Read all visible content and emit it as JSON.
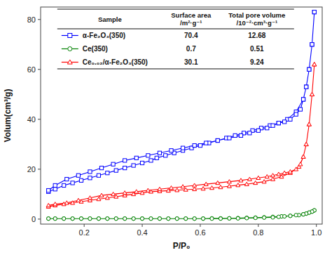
{
  "chart_data": {
    "type": "line",
    "x_label": "P/P₀",
    "y_label": "Volum(cm³/g)",
    "xlim": [
      0.05,
      1.02
    ],
    "ylim": [
      -2,
      85
    ],
    "xticks": [
      0.2,
      0.4,
      0.6,
      0.8,
      {
        "value": 1.0,
        "label": "1.0"
      }
    ],
    "yticks": [
      0,
      20,
      40,
      60,
      80
    ],
    "grid": false,
    "legend": "top",
    "table_columns": [
      [
        "Sample"
      ],
      [
        "Surface area",
        "/m²·g⁻¹"
      ],
      [
        "Total pore volume",
        "/10⁻²·cm³·g⁻¹"
      ]
    ],
    "series": [
      {
        "name": "α-Fe₂O₃(350)",
        "color": "#0000FF",
        "marker": "square",
        "surface_area": 70.4,
        "pore_volume": 12.68,
        "x": [
          0.077,
          0.1,
          0.13,
          0.16,
          0.19,
          0.22,
          0.25,
          0.28,
          0.31,
          0.34,
          0.37,
          0.4,
          0.43,
          0.45,
          0.48,
          0.51,
          0.54,
          0.57,
          0.6,
          0.63,
          0.66,
          0.69,
          0.72,
          0.75,
          0.78,
          0.81,
          0.84,
          0.87,
          0.9,
          0.93,
          0.955,
          0.965,
          0.975,
          0.985,
          0.993,
          0.993,
          0.985,
          0.975,
          0.965,
          0.955,
          0.945,
          0.93,
          0.91,
          0.89,
          0.87,
          0.85,
          0.83,
          0.8,
          0.77,
          0.74,
          0.7,
          0.66,
          0.62,
          0.58,
          0.54,
          0.5,
          0.46,
          0.42,
          0.38,
          0.34,
          0.3,
          0.26,
          0.22,
          0.18,
          0.14,
          0.1,
          0.077
        ],
        "values": [
          11.0,
          12.0,
          13.5,
          14.5,
          15.5,
          16.5,
          17.5,
          18.5,
          19.5,
          20.5,
          21.5,
          22.5,
          23.5,
          24.5,
          25.5,
          26.5,
          27.5,
          28.5,
          29.5,
          30.5,
          31.5,
          32.5,
          33.5,
          34.5,
          35.5,
          36.5,
          37.5,
          38.5,
          40.0,
          43.0,
          48.0,
          53.0,
          60.0,
          70.0,
          83.0,
          83.0,
          70.0,
          60.0,
          53.0,
          48.0,
          44.0,
          42.0,
          40.0,
          39.0,
          38.5,
          37.5,
          36.5,
          35.5,
          34.5,
          33.5,
          32.5,
          31.5,
          30.5,
          29.5,
          28.5,
          27.5,
          26.5,
          25.5,
          24.5,
          23.5,
          22.0,
          20.5,
          19.0,
          17.5,
          16.0,
          13.5,
          11.5
        ]
      },
      {
        "name": "Ce(350)",
        "color": "#008000",
        "marker": "circle",
        "surface_area": 0.7,
        "pore_volume": 0.51,
        "x": [
          0.077,
          0.1,
          0.13,
          0.16,
          0.19,
          0.22,
          0.25,
          0.28,
          0.31,
          0.34,
          0.37,
          0.4,
          0.43,
          0.46,
          0.49,
          0.52,
          0.55,
          0.58,
          0.61,
          0.64,
          0.67,
          0.7,
          0.73,
          0.76,
          0.79,
          0.82,
          0.85,
          0.88,
          0.91,
          0.94,
          0.955,
          0.965,
          0.975,
          0.985,
          0.993,
          0.993,
          0.985,
          0.975,
          0.965,
          0.955,
          0.93,
          0.91,
          0.89,
          0.87,
          0.85,
          0.82,
          0.79,
          0.76,
          0.73,
          0.7,
          0.67,
          0.64,
          0.61,
          0.58,
          0.55,
          0.52,
          0.49,
          0.46,
          0.43,
          0.4,
          0.37,
          0.34,
          0.31,
          0.28,
          0.25,
          0.22,
          0.19,
          0.16,
          0.13,
          0.1,
          0.077
        ],
        "values": [
          0.2,
          0.2,
          0.2,
          0.2,
          0.2,
          0.2,
          0.2,
          0.2,
          0.2,
          0.2,
          0.2,
          0.2,
          0.2,
          0.2,
          0.2,
          0.2,
          0.2,
          0.2,
          0.2,
          0.3,
          0.3,
          0.3,
          0.4,
          0.5,
          0.6,
          0.7,
          0.9,
          1.1,
          1.3,
          1.6,
          1.9,
          2.2,
          2.6,
          3.0,
          3.5,
          3.5,
          3.0,
          2.6,
          2.2,
          1.9,
          1.6,
          1.3,
          1.1,
          0.9,
          0.7,
          0.6,
          0.5,
          0.4,
          0.3,
          0.3,
          0.2,
          0.2,
          0.2,
          0.2,
          0.2,
          0.2,
          0.2,
          0.2,
          0.2,
          0.2,
          0.2,
          0.2,
          0.2,
          0.2,
          0.2,
          0.2,
          0.2,
          0.2,
          0.2,
          0.2,
          0.2
        ]
      },
      {
        "name": "Ce₀.₀₂/α-Fe₂O₃(350)",
        "color": "#FF0000",
        "marker": "triangle",
        "surface_area": 30.1,
        "pore_volume": 9.24,
        "x": [
          0.077,
          0.1,
          0.13,
          0.16,
          0.19,
          0.22,
          0.25,
          0.28,
          0.31,
          0.34,
          0.37,
          0.4,
          0.43,
          0.46,
          0.49,
          0.52,
          0.55,
          0.58,
          0.61,
          0.64,
          0.67,
          0.7,
          0.73,
          0.76,
          0.79,
          0.82,
          0.85,
          0.88,
          0.91,
          0.94,
          0.955,
          0.965,
          0.975,
          0.985,
          0.993,
          0.993,
          0.985,
          0.975,
          0.965,
          0.955,
          0.945,
          0.93,
          0.91,
          0.89,
          0.87,
          0.85,
          0.83,
          0.8,
          0.77,
          0.74,
          0.7,
          0.66,
          0.62,
          0.58,
          0.54,
          0.5,
          0.46,
          0.42,
          0.38,
          0.34,
          0.3,
          0.26,
          0.22,
          0.18,
          0.14,
          0.1,
          0.077
        ],
        "values": [
          5.0,
          5.5,
          6.0,
          6.5,
          7.0,
          7.5,
          8.0,
          8.5,
          9.0,
          9.5,
          10.0,
          10.5,
          11.0,
          11.2,
          11.4,
          11.6,
          11.8,
          12.0,
          12.2,
          12.5,
          12.8,
          13.2,
          13.6,
          14.0,
          14.5,
          15.0,
          16.0,
          17.0,
          18.5,
          21.0,
          25.0,
          30.0,
          38.0,
          50.0,
          62.0,
          62.0,
          50.0,
          38.0,
          30.0,
          25.0,
          22.0,
          20.0,
          19.0,
          18.5,
          18.0,
          17.5,
          17.0,
          16.5,
          16.0,
          15.5,
          15.0,
          14.5,
          14.0,
          13.5,
          13.0,
          12.5,
          12.0,
          11.5,
          11.0,
          10.5,
          10.0,
          9.5,
          8.5,
          7.5,
          6.5,
          6.0,
          5.5
        ]
      }
    ]
  }
}
